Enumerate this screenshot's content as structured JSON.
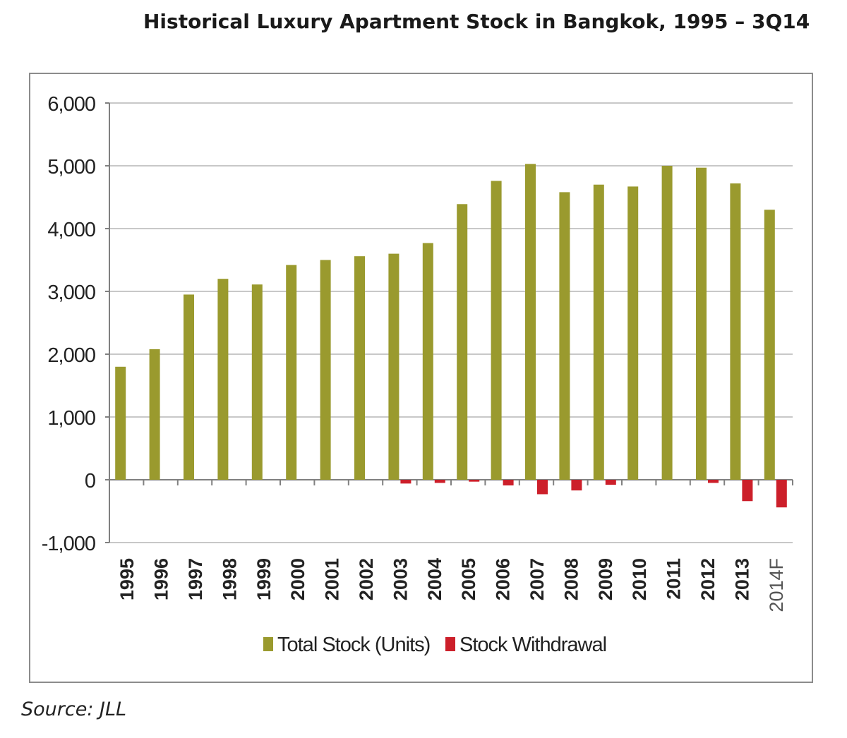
{
  "title": "Historical Luxury Apartment Stock in Bangkok, 1995 – 3Q14",
  "source": "Source: JLL",
  "colors": {
    "total_stock": "#9a9a2e",
    "withdrawal": "#cc1f2a",
    "grid": "#c8c8c8",
    "axis": "#808080"
  },
  "chart_data": {
    "type": "bar",
    "categories": [
      "1995",
      "1996",
      "1997",
      "1998",
      "1999",
      "2000",
      "2001",
      "2002",
      "2003",
      "2004",
      "2005",
      "2006",
      "2007",
      "2008",
      "2009",
      "2010",
      "2011",
      "2012",
      "2013",
      "2014F"
    ],
    "series": [
      {
        "name": "Total Stock (Units)",
        "color": "#9a9a2e",
        "values": [
          1800,
          2080,
          2950,
          3200,
          3110,
          3420,
          3500,
          3560,
          3600,
          3770,
          4390,
          4760,
          5030,
          4580,
          4700,
          4670,
          5000,
          4970,
          4720,
          4300
        ]
      },
      {
        "name": "Stock Withdrawal",
        "color": "#cc1f2a",
        "values": [
          0,
          0,
          0,
          0,
          0,
          0,
          0,
          0,
          -60,
          -50,
          -30,
          -90,
          -230,
          -170,
          -80,
          0,
          0,
          -50,
          -340,
          -440
        ]
      }
    ],
    "ylim": [
      -1000,
      6000
    ],
    "yticks": [
      "-1,000",
      "0",
      "1,000",
      "2,000",
      "3,000",
      "4,000",
      "5,000",
      "6,000"
    ],
    "ytick_values": [
      -1000,
      0,
      1000,
      2000,
      3000,
      4000,
      5000,
      6000
    ],
    "legend_position": "bottom",
    "grid": true
  }
}
